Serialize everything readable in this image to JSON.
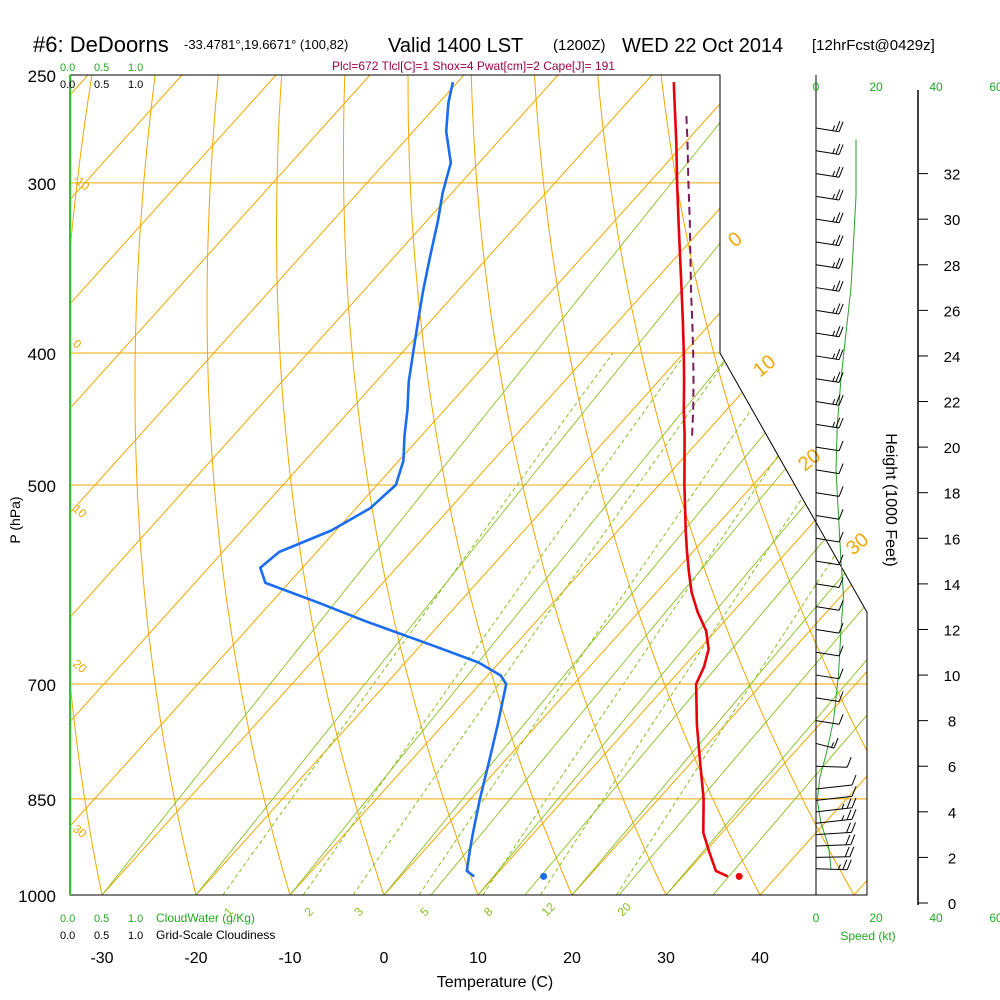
{
  "header": {
    "title": "#6: DeDoorns",
    "location": "-33.4781°,19.6671° (100,82)",
    "valid": "Valid 1400 LST",
    "utc": "(1200Z)",
    "date": "WED 22 Oct 2014",
    "forecast": "[12hrFcst@0429z]",
    "indices": "Plcl=672 Tlcl[C]=1 Shox=4 Pwat[cm]=2 Cape[J]= 191"
  },
  "labels": {
    "cloudwater": "CloudWater (g/Kg)",
    "cloudiness": "Grid-Scale Cloudiness",
    "cloud_scale": [
      "0.0",
      "0.5",
      "1.0"
    ],
    "speed": "Speed (kt)",
    "height": "Height (1000 Feet)",
    "pressure": "P (hPa)",
    "temperature": "Temperature (C)"
  },
  "colors": {
    "temperature": "#e8000b",
    "dewpoint": "#1a6cf0",
    "parcel": "#7a1a5a",
    "isotherm": "#f0a800",
    "dry_adiabat": "#f0a800",
    "moist_adiabat": "#88c020",
    "mixing_ratio": "#88c020",
    "wind_speed": "#2aa02a",
    "title_indices": "#a0004a",
    "green_text": "#22aa22"
  },
  "chart_data": {
    "type": "line",
    "plot": "skew-T log-P sounding",
    "x_ticks": [
      -30,
      -20,
      -10,
      0,
      10,
      20,
      30,
      40
    ],
    "pressure_ticks": [
      250,
      300,
      400,
      500,
      700,
      850,
      1000
    ],
    "height_ticks": [
      0,
      2,
      4,
      6,
      8,
      10,
      12,
      14,
      16,
      18,
      20,
      22,
      24,
      26,
      28,
      30,
      32
    ],
    "speed_ticks": [
      0,
      20,
      40,
      60
    ],
    "isotherm_labels": [
      "-20",
      "-10",
      "0",
      "10",
      "20",
      "30"
    ],
    "isotherm_label_temps": [
      -20,
      -10,
      0,
      10,
      20,
      30
    ],
    "dry_adiabat_labels": [
      "-10",
      "0",
      "10",
      "20",
      "30",
      "40"
    ],
    "mixing_ratio_labels": [
      "1",
      "2",
      "3",
      "5",
      "8",
      "12",
      "20"
    ],
    "mixing_ratio_values": [
      1,
      2,
      3,
      5,
      8,
      12,
      20
    ],
    "surface_pressure_hpa": 969,
    "series": [
      {
        "name": "temperature",
        "points": [
          {
            "p": 969,
            "t": 34.8
          },
          {
            "p": 960,
            "t": 33.0
          },
          {
            "p": 930,
            "t": 30.5
          },
          {
            "p": 900,
            "t": 28.0
          },
          {
            "p": 850,
            "t": 24.8
          },
          {
            "p": 800,
            "t": 21.0
          },
          {
            "p": 750,
            "t": 17.0
          },
          {
            "p": 700,
            "t": 13.0
          },
          {
            "p": 680,
            "t": 12.2
          },
          {
            "p": 660,
            "t": 11.0
          },
          {
            "p": 640,
            "t": 9.0
          },
          {
            "p": 620,
            "t": 6.3
          },
          {
            "p": 600,
            "t": 3.8
          },
          {
            "p": 580,
            "t": 1.6
          },
          {
            "p": 560,
            "t": -0.6
          },
          {
            "p": 540,
            "t": -2.8
          },
          {
            "p": 520,
            "t": -5.0
          },
          {
            "p": 500,
            "t": -7.3
          },
          {
            "p": 480,
            "t": -9.6
          },
          {
            "p": 460,
            "t": -12.0
          },
          {
            "p": 440,
            "t": -14.6
          },
          {
            "p": 420,
            "t": -17.2
          },
          {
            "p": 400,
            "t": -20.0
          },
          {
            "p": 380,
            "t": -23.0
          },
          {
            "p": 360,
            "t": -26.2
          },
          {
            "p": 340,
            "t": -29.6
          },
          {
            "p": 320,
            "t": -33.2
          },
          {
            "p": 300,
            "t": -37.0
          },
          {
            "p": 280,
            "t": -41.0
          },
          {
            "p": 260,
            "t": -45.4
          },
          {
            "p": 253,
            "t": -47.0
          }
        ]
      },
      {
        "name": "dewpoint",
        "points": [
          {
            "p": 969,
            "t": 7.8
          },
          {
            "p": 960,
            "t": 6.5
          },
          {
            "p": 930,
            "t": 5.0
          },
          {
            "p": 900,
            "t": 3.5
          },
          {
            "p": 850,
            "t": 1.0
          },
          {
            "p": 800,
            "t": -1.5
          },
          {
            "p": 750,
            "t": -4.2
          },
          {
            "p": 700,
            "t": -7.2
          },
          {
            "p": 690,
            "t": -8.6
          },
          {
            "p": 675,
            "t": -12.2
          },
          {
            "p": 655,
            "t": -19.0
          },
          {
            "p": 630,
            "t": -28.0
          },
          {
            "p": 610,
            "t": -35.0
          },
          {
            "p": 590,
            "t": -42.5
          },
          {
            "p": 575,
            "t": -44.5
          },
          {
            "p": 560,
            "t": -44.0
          },
          {
            "p": 540,
            "t": -40.5
          },
          {
            "p": 520,
            "t": -38.5
          },
          {
            "p": 500,
            "t": -38.0
          },
          {
            "p": 480,
            "t": -39.5
          },
          {
            "p": 460,
            "t": -41.8
          },
          {
            "p": 440,
            "t": -44.0
          },
          {
            "p": 420,
            "t": -46.5
          },
          {
            "p": 400,
            "t": -48.8
          },
          {
            "p": 380,
            "t": -51.2
          },
          {
            "p": 360,
            "t": -53.7
          },
          {
            "p": 340,
            "t": -56.2
          },
          {
            "p": 320,
            "t": -58.8
          },
          {
            "p": 305,
            "t": -61.0
          },
          {
            "p": 290,
            "t": -63.0
          },
          {
            "p": 275,
            "t": -66.5
          },
          {
            "p": 262,
            "t": -69.0
          },
          {
            "p": 253,
            "t": -70.5
          }
        ]
      },
      {
        "name": "parcel",
        "points": [
          {
            "p": 460,
            "t": -11.2
          },
          {
            "p": 440,
            "t": -13.6
          },
          {
            "p": 420,
            "t": -16.2
          },
          {
            "p": 400,
            "t": -19.0
          },
          {
            "p": 380,
            "t": -22.0
          },
          {
            "p": 360,
            "t": -25.2
          },
          {
            "p": 340,
            "t": -28.5
          },
          {
            "p": 320,
            "t": -32.0
          },
          {
            "p": 300,
            "t": -35.8
          },
          {
            "p": 280,
            "t": -39.8
          },
          {
            "p": 268,
            "t": -42.4
          }
        ]
      },
      {
        "name": "surface dots",
        "points": [
          {
            "p": 969,
            "t": 36.0,
            "kind": "temperature"
          },
          {
            "p": 969,
            "t": 15.2,
            "kind": "dewpoint"
          }
        ]
      },
      {
        "name": "wind speed",
        "points": [
          {
            "h": 1.5,
            "s": 6
          },
          {
            "h": 2.5,
            "s": 5
          },
          {
            "h": 3.5,
            "s": 2
          },
          {
            "h": 4.5,
            "s": 0.5
          },
          {
            "h": 5.5,
            "s": 1.5
          },
          {
            "h": 6.5,
            "s": 4
          },
          {
            "h": 8,
            "s": 7
          },
          {
            "h": 10,
            "s": 9
          },
          {
            "h": 12,
            "s": 10
          },
          {
            "h": 13.5,
            "s": 11
          },
          {
            "h": 15,
            "s": 10
          },
          {
            "h": 17,
            "s": 9
          },
          {
            "h": 19,
            "s": 8
          },
          {
            "h": 21,
            "s": 8.5
          },
          {
            "h": 23,
            "s": 10
          },
          {
            "h": 25,
            "s": 12
          },
          {
            "h": 27,
            "s": 14
          },
          {
            "h": 29,
            "s": 15
          },
          {
            "h": 31,
            "s": 16
          },
          {
            "h": 33.5,
            "s": 16
          }
        ]
      },
      {
        "name": "wind barbs",
        "points": [
          {
            "h": 1.5,
            "spd": 15,
            "dir": 300
          },
          {
            "h": 2.0,
            "spd": 20,
            "dir": 290
          },
          {
            "h": 2.5,
            "spd": 20,
            "dir": 285
          },
          {
            "h": 3.0,
            "spd": 20,
            "dir": 280
          },
          {
            "h": 3.5,
            "spd": 15,
            "dir": 270
          },
          {
            "h": 4.0,
            "spd": 15,
            "dir": 270
          },
          {
            "h": 4.5,
            "spd": 10,
            "dir": 270
          },
          {
            "h": 5.0,
            "spd": 10,
            "dir": 270
          },
          {
            "h": 6.0,
            "spd": 10,
            "dir": 300
          },
          {
            "h": 7.0,
            "spd": 5,
            "dir": 330
          },
          {
            "h": 8.0,
            "spd": 10,
            "dir": 320
          },
          {
            "h": 9.0,
            "spd": 10,
            "dir": 320
          },
          {
            "h": 10.0,
            "spd": 10,
            "dir": 320
          },
          {
            "h": 11.0,
            "spd": 10,
            "dir": 320
          },
          {
            "h": 12.0,
            "spd": 10,
            "dir": 320
          },
          {
            "h": 13.0,
            "spd": 10,
            "dir": 320
          },
          {
            "h": 14.0,
            "spd": 10,
            "dir": 320
          },
          {
            "h": 15.0,
            "spd": 10,
            "dir": 320
          },
          {
            "h": 16.0,
            "spd": 10,
            "dir": 320
          },
          {
            "h": 17.0,
            "spd": 10,
            "dir": 320
          },
          {
            "h": 18.0,
            "spd": 10,
            "dir": 320
          },
          {
            "h": 19.0,
            "spd": 10,
            "dir": 320
          },
          {
            "h": 20.0,
            "spd": 10,
            "dir": 320
          },
          {
            "h": 21.0,
            "spd": 15,
            "dir": 320
          },
          {
            "h": 22.0,
            "spd": 15,
            "dir": 320
          },
          {
            "h": 23.0,
            "spd": 15,
            "dir": 320
          },
          {
            "h": 24.0,
            "spd": 15,
            "dir": 320
          },
          {
            "h": 25.0,
            "spd": 15,
            "dir": 320
          },
          {
            "h": 26.0,
            "spd": 15,
            "dir": 320
          },
          {
            "h": 27.0,
            "spd": 15,
            "dir": 320
          },
          {
            "h": 28.0,
            "spd": 15,
            "dir": 320
          },
          {
            "h": 29.0,
            "spd": 15,
            "dir": 320
          },
          {
            "h": 30.0,
            "spd": 15,
            "dir": 320
          },
          {
            "h": 31.0,
            "spd": 15,
            "dir": 320
          },
          {
            "h": 32.0,
            "spd": 15,
            "dir": 320
          },
          {
            "h": 33.0,
            "spd": 15,
            "dir": 320
          },
          {
            "h": 34.0,
            "spd": 15,
            "dir": 320
          }
        ]
      }
    ],
    "grid": true
  }
}
